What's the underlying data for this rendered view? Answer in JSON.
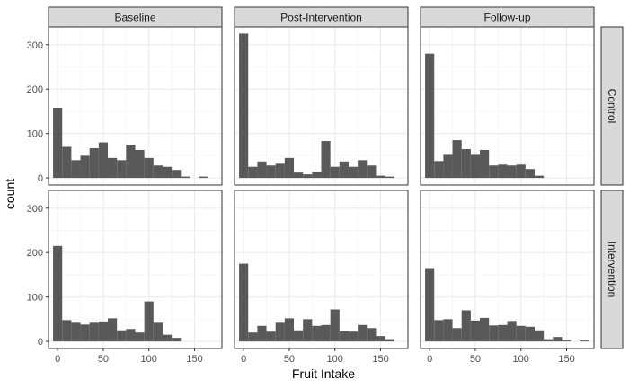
{
  "chart_data": {
    "type": "histogram-facet",
    "xlabel": "Fruit Intake",
    "ylabel": "count",
    "xlim": [
      -10,
      180
    ],
    "ylim": [
      -16,
      340
    ],
    "x_ticks": [
      0,
      50,
      100,
      150
    ],
    "y_ticks": [
      0,
      100,
      200,
      300
    ],
    "bin_width": 10,
    "bin_centers": [
      0,
      10,
      20,
      30,
      40,
      50,
      60,
      70,
      80,
      90,
      100,
      110,
      120,
      130,
      140,
      150,
      160,
      170
    ],
    "columns": [
      "Baseline",
      "Post-Intervention",
      "Follow-up"
    ],
    "rows": [
      "Control",
      "Intervention"
    ],
    "bar_color": "#595959",
    "panels": [
      {
        "row": "Control",
        "column": "Baseline",
        "counts": [
          158,
          70,
          40,
          50,
          67,
          80,
          45,
          40,
          75,
          63,
          45,
          28,
          25,
          18,
          3,
          0,
          3,
          0
        ]
      },
      {
        "row": "Control",
        "column": "Post-Intervention",
        "counts": [
          325,
          25,
          37,
          28,
          32,
          45,
          12,
          8,
          13,
          83,
          25,
          37,
          25,
          40,
          28,
          5,
          3,
          0
        ]
      },
      {
        "row": "Control",
        "column": "Follow-up",
        "counts": [
          280,
          38,
          52,
          85,
          65,
          52,
          63,
          28,
          30,
          28,
          30,
          20,
          5,
          0,
          0,
          0,
          0,
          0
        ]
      },
      {
        "row": "Intervention",
        "column": "Baseline",
        "counts": [
          215,
          48,
          42,
          38,
          42,
          45,
          52,
          25,
          28,
          20,
          90,
          42,
          15,
          8,
          0,
          0,
          0,
          0
        ]
      },
      {
        "row": "Intervention",
        "column": "Post-Intervention",
        "counts": [
          175,
          20,
          35,
          22,
          42,
          52,
          25,
          50,
          35,
          37,
          72,
          23,
          22,
          37,
          30,
          12,
          5,
          0
        ]
      },
      {
        "row": "Intervention",
        "column": "Follow-up",
        "counts": [
          165,
          48,
          50,
          30,
          70,
          47,
          53,
          36,
          37,
          46,
          35,
          33,
          25,
          5,
          10,
          2,
          0,
          2
        ]
      }
    ]
  }
}
